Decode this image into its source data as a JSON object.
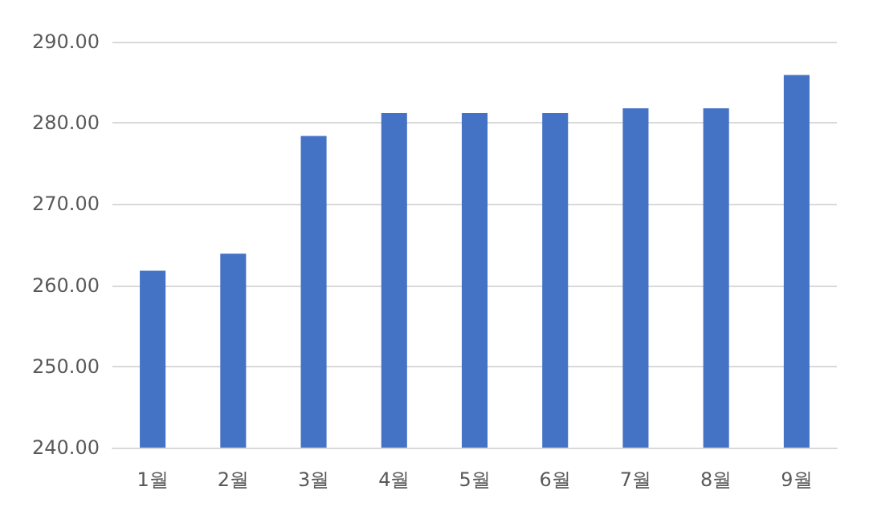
{
  "chart_data": {
    "type": "bar",
    "categories": [
      "1월",
      "2월",
      "3월",
      "4월",
      "5월",
      "6월",
      "7월",
      "8월",
      "9월"
    ],
    "values": [
      261.8,
      263.9,
      278.4,
      281.2,
      281.2,
      281.2,
      281.8,
      281.8,
      285.9
    ],
    "color": "#4472c4",
    "ylim": [
      240,
      290
    ],
    "yticks": [
      {
        "value": 240,
        "label": "240.00"
      },
      {
        "value": 250,
        "label": "250.00"
      },
      {
        "value": 260,
        "label": "260.00"
      },
      {
        "value": 270,
        "label": "270.00"
      },
      {
        "value": 280,
        "label": "280.00"
      },
      {
        "value": 290,
        "label": "290.00"
      }
    ],
    "grid": "y"
  }
}
